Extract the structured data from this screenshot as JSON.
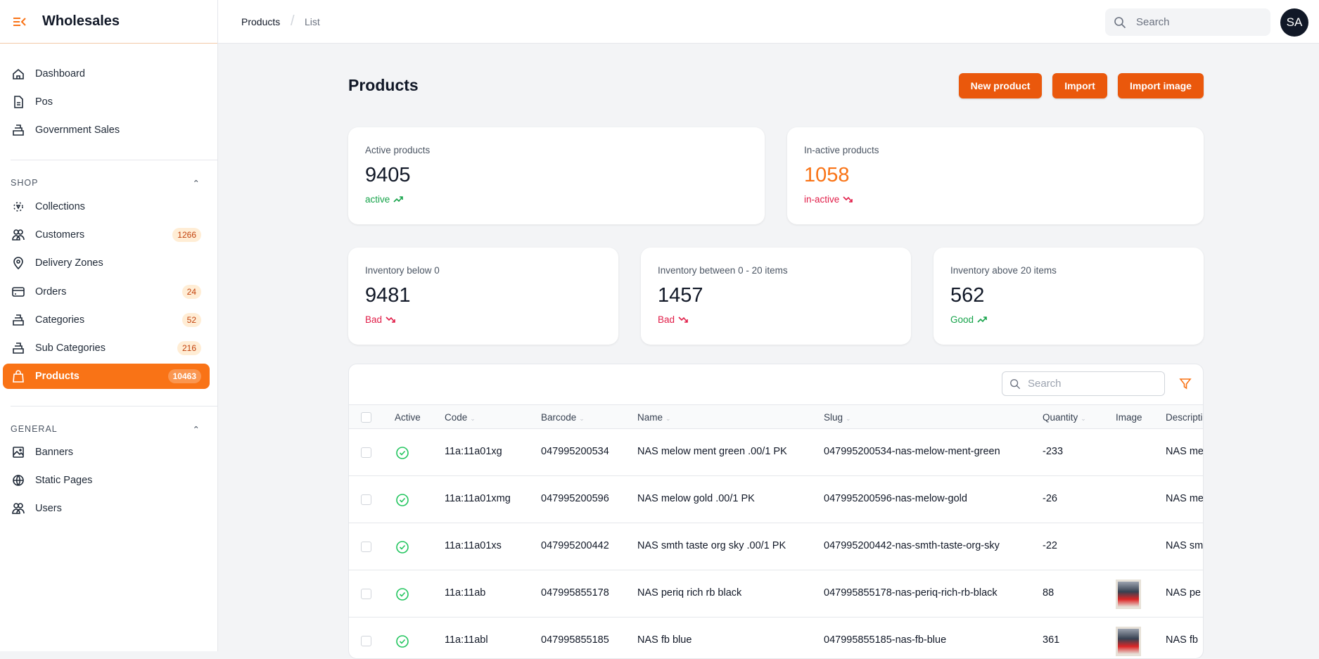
{
  "brand": {
    "name": "Wholesales",
    "accent": "#f97316"
  },
  "nav": {
    "top": [
      {
        "label": "Dashboard",
        "icon": "home-icon"
      },
      {
        "label": "Pos",
        "icon": "document-icon"
      },
      {
        "label": "Government Sales",
        "icon": "stack-icon"
      }
    ],
    "shop_label": "SHOP",
    "shop": [
      {
        "label": "Collections",
        "icon": "collection-icon"
      },
      {
        "label": "Customers",
        "icon": "users-icon",
        "badge": "1266"
      },
      {
        "label": "Delivery Zones",
        "icon": "map-pin-icon"
      },
      {
        "label": "Orders",
        "icon": "card-icon",
        "badge": "24"
      },
      {
        "label": "Categories",
        "icon": "stack-icon",
        "badge": "52"
      },
      {
        "label": "Sub Categories",
        "icon": "stack-icon",
        "badge": "216"
      },
      {
        "label": "Products",
        "icon": "shopping-bag-icon",
        "badge": "10463",
        "active": true
      }
    ],
    "general_label": "GENERAL",
    "general": [
      {
        "label": "Banners",
        "icon": "image-icon"
      },
      {
        "label": "Static Pages",
        "icon": "globe-icon"
      },
      {
        "label": "Users",
        "icon": "users-icon"
      }
    ]
  },
  "breadcrumb": [
    "Products",
    "List"
  ],
  "header": {
    "search_placeholder": "Search",
    "avatar": "SA"
  },
  "page": {
    "title": "Products",
    "buttons": [
      "New product",
      "Import",
      "Import image"
    ]
  },
  "stats": [
    {
      "label": "Active products",
      "value": "9405",
      "trend": "active",
      "dir": "up",
      "color": "#16a34a",
      "value_color": "#111827"
    },
    {
      "label": "In-active products",
      "value": "1058",
      "trend": "in-active",
      "dir": "down",
      "color": "#e11d48",
      "value_color": "#f97316"
    },
    {
      "label": "Inventory below 0",
      "value": "9481",
      "trend": "Bad",
      "dir": "down",
      "color": "#e11d48",
      "value_color": "#111827"
    },
    {
      "label": "Inventory between 0 - 20 items",
      "value": "1457",
      "trend": "Bad",
      "dir": "down",
      "color": "#e11d48",
      "value_color": "#111827"
    },
    {
      "label": "Inventory above 20 items",
      "value": "562",
      "trend": "Good",
      "dir": "up",
      "color": "#16a34a",
      "value_color": "#111827"
    }
  ],
  "table": {
    "search_placeholder": "Search",
    "columns": [
      "Active",
      "Code",
      "Barcode",
      "Name",
      "Slug",
      "Quantity",
      "Image",
      "Description"
    ],
    "rows": [
      {
        "active": true,
        "code": "11a:11a01xg",
        "barcode": "047995200534",
        "name": "NAS melow ment green .00/1 PK",
        "slug": "047995200534-nas-melow-ment-green",
        "quantity": "-233",
        "image": false,
        "description": "NAS me"
      },
      {
        "active": true,
        "code": "11a:11a01xmg",
        "barcode": "047995200596",
        "name": "NAS melow gold .00/1 PK",
        "slug": "047995200596-nas-melow-gold",
        "quantity": "-26",
        "image": false,
        "description": "NAS me"
      },
      {
        "active": true,
        "code": "11a:11a01xs",
        "barcode": "047995200442",
        "name": "NAS smth taste org sky .00/1 PK",
        "slug": "047995200442-nas-smth-taste-org-sky",
        "quantity": "-22",
        "image": false,
        "description": "NAS sm"
      },
      {
        "active": true,
        "code": "11a:11ab",
        "barcode": "047995855178",
        "name": "NAS periq rich rb black",
        "slug": "047995855178-nas-periq-rich-rb-black",
        "quantity": "88",
        "image": true,
        "description": "NAS pe"
      },
      {
        "active": true,
        "code": "11a:11abl",
        "barcode": "047995855185",
        "name": "NAS fb blue",
        "slug": "047995855185-nas-fb-blue",
        "quantity": "361",
        "image": true,
        "description": "NAS fb"
      }
    ]
  }
}
